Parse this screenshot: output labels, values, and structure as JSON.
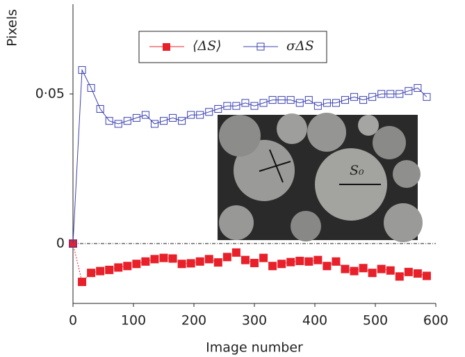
{
  "chart_data": {
    "type": "line",
    "x_label": "Image number",
    "y_label": "Pixels",
    "x": [
      0,
      15,
      30,
      45,
      60,
      75,
      90,
      105,
      120,
      135,
      150,
      165,
      180,
      195,
      210,
      225,
      240,
      255,
      270,
      285,
      300,
      315,
      330,
      345,
      360,
      375,
      390,
      405,
      420,
      435,
      450,
      465,
      480,
      495,
      510,
      525,
      540,
      555,
      570,
      585
    ],
    "series": [
      {
        "name": "⟨ΔS⟩",
        "color": "#e8202a",
        "marker": "filled-square",
        "values": [
          0,
          -0.0128,
          -0.0098,
          -0.0092,
          -0.0088,
          -0.008,
          -0.0075,
          -0.0068,
          -0.006,
          -0.0052,
          -0.0048,
          -0.005,
          -0.0068,
          -0.0066,
          -0.006,
          -0.0052,
          -0.0063,
          -0.0045,
          -0.003,
          -0.0055,
          -0.0065,
          -0.0048,
          -0.0075,
          -0.0068,
          -0.0062,
          -0.0058,
          -0.006,
          -0.0055,
          -0.0075,
          -0.006,
          -0.0085,
          -0.0092,
          -0.0082,
          -0.0098,
          -0.0085,
          -0.009,
          -0.011,
          -0.0095,
          -0.01,
          -0.0108
        ]
      },
      {
        "name": "σΔS",
        "color": "#3a3fb0",
        "marker": "open-square",
        "values": [
          0,
          0.058,
          0.052,
          0.045,
          0.041,
          0.04,
          0.041,
          0.042,
          0.043,
          0.04,
          0.041,
          0.042,
          0.041,
          0.043,
          0.043,
          0.044,
          0.045,
          0.046,
          0.046,
          0.047,
          0.046,
          0.047,
          0.048,
          0.048,
          0.048,
          0.047,
          0.048,
          0.046,
          0.047,
          0.047,
          0.048,
          0.049,
          0.048,
          0.049,
          0.05,
          0.05,
          0.05,
          0.051,
          0.052,
          0.049
        ]
      }
    ],
    "xlim": [
      0,
      600
    ],
    "xticks": [
      0,
      100,
      200,
      300,
      400,
      500,
      600
    ],
    "ylim": [
      -0.02,
      0.08
    ],
    "yticks": [
      0,
      {
        "value": 0.05,
        "label": "0·05"
      }
    ],
    "zero_line": true,
    "inset_label": "S₀"
  }
}
